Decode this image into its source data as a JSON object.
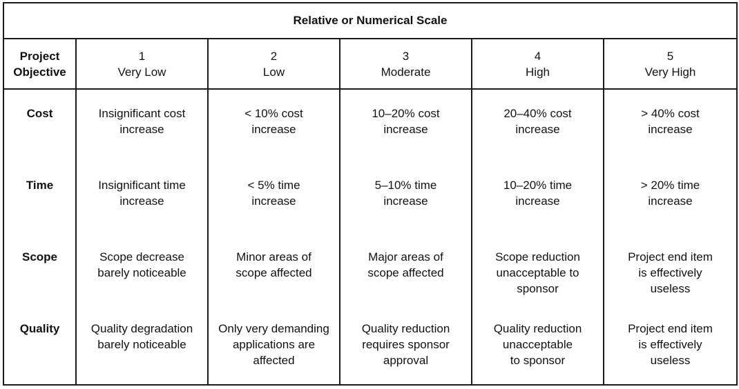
{
  "title": "Relative or Numerical Scale",
  "header": {
    "objective_label": "Project\nObjective",
    "levels": [
      {
        "number": "1",
        "label": "Very Low"
      },
      {
        "number": "2",
        "label": "Low"
      },
      {
        "number": "3",
        "label": "Moderate"
      },
      {
        "number": "4",
        "label": "High"
      },
      {
        "number": "5",
        "label": "Very High"
      }
    ]
  },
  "rows": [
    {
      "objective": "Cost",
      "cells": [
        "Insignificant cost\nincrease",
        "< 10% cost\nincrease",
        "10–20% cost\nincrease",
        "20–40% cost\nincrease",
        "> 40% cost\nincrease"
      ]
    },
    {
      "objective": "Time",
      "cells": [
        "Insignificant time\nincrease",
        "< 5% time\nincrease",
        "5–10% time\nincrease",
        "10–20% time\nincrease",
        "> 20% time\nincrease"
      ]
    },
    {
      "objective": "Scope",
      "cells": [
        "Scope decrease\nbarely noticeable",
        "Minor areas of\nscope affected",
        "Major areas of\nscope affected",
        "Scope reduction\nunacceptable to\nsponsor",
        "Project end item\nis effectively\nuseless"
      ]
    },
    {
      "objective": "Quality",
      "cells": [
        "Quality degradation\nbarely noticeable",
        "Only very demanding\napplications are\naffected",
        "Quality reduction\nrequires sponsor\napproval",
        "Quality reduction\nunacceptable\nto sponsor",
        "Project end item\nis effectively\nuseless"
      ]
    }
  ]
}
